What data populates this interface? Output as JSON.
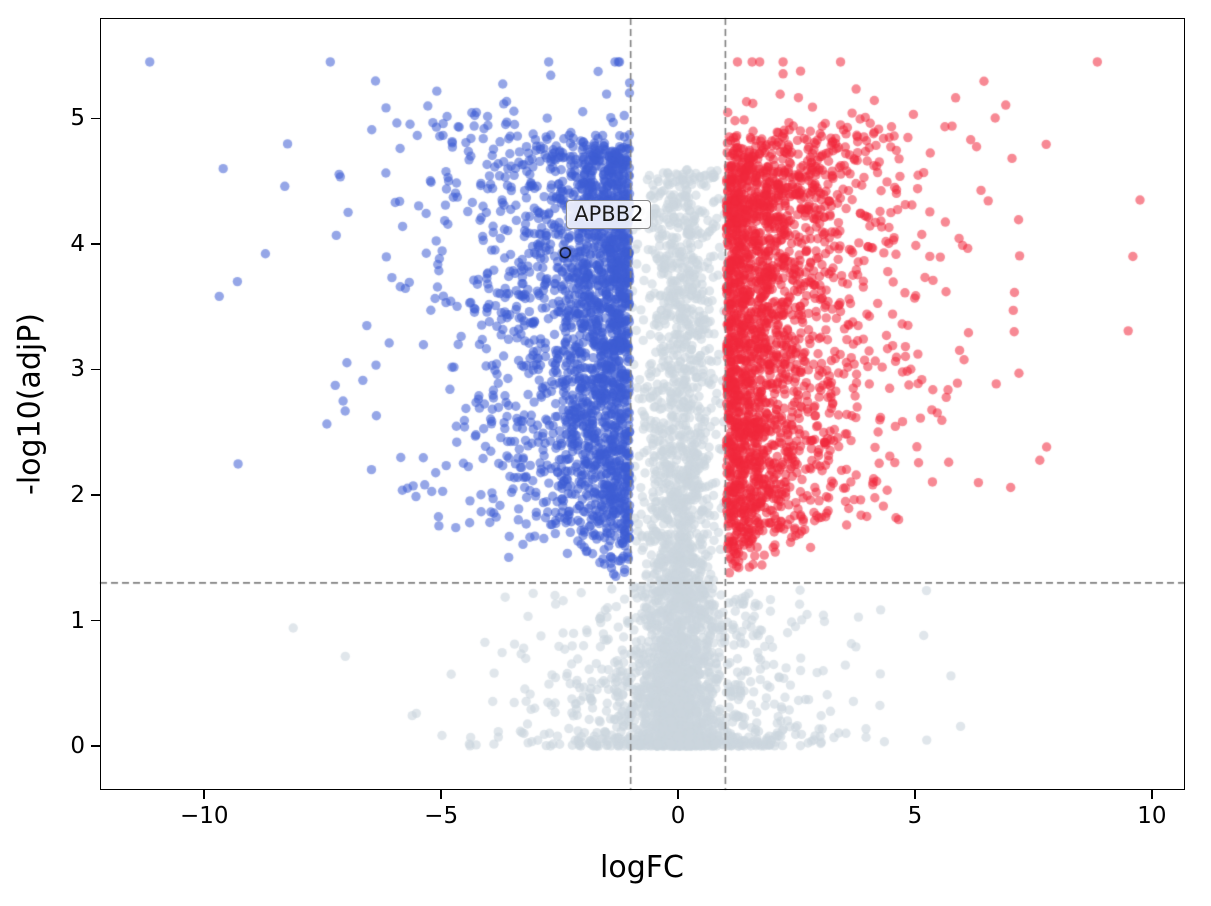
{
  "figure": {
    "background": "#ffffff"
  },
  "chart_data": {
    "type": "scatter",
    "subtype": "volcano-plot",
    "title": "",
    "xlabel": "logFC",
    "ylabel": "-log10(adjP)",
    "xlim": [
      -12.2,
      10.7
    ],
    "ylim": [
      -0.35,
      5.8
    ],
    "grid": false,
    "legend": "none",
    "xticks": {
      "values": [
        -10,
        -5,
        0,
        5,
        10
      ],
      "labels": [
        "−10",
        "−5",
        "0",
        "5",
        "10"
      ]
    },
    "yticks": {
      "values": [
        0,
        1,
        2,
        3,
        4,
        5
      ],
      "labels": [
        "0",
        "1",
        "2",
        "3",
        "4",
        "5"
      ]
    },
    "thresholds": {
      "logfc_low": -1,
      "logfc_high": 1,
      "pval_line": 1.3,
      "line_color": "#7f7f7f",
      "dash": [
        7,
        4
      ]
    },
    "marker": {
      "radius": 4.7
    },
    "seed": 42,
    "series": [
      {
        "name": "non-significant",
        "role": "ns",
        "color": "rgba(204,213,221,0.6)",
        "count": 3100,
        "sign": 0,
        "fc_scale": 0,
        "top_boost": 0
      },
      {
        "name": "down-regulated",
        "role": "down",
        "color": "rgba(62,92,211,0.55)",
        "count": 2300,
        "sign": -1,
        "fc_scale": 1.05,
        "top_boost": 0.008
      },
      {
        "name": "up-regulated",
        "role": "up",
        "color": "rgba(240,40,60,0.55)",
        "count": 2300,
        "sign": 1,
        "fc_scale": 1.05,
        "top_boost": 0.016
      }
    ],
    "outliers": [
      {
        "x": -11.15,
        "y": 5.45,
        "series": "down-regulated"
      },
      {
        "x": -9.6,
        "y": 4.6,
        "series": "down-regulated"
      },
      {
        "x": -9.3,
        "y": 3.7,
        "series": "down-regulated"
      },
      {
        "x": 9.75,
        "y": 4.35,
        "series": "up-regulated"
      },
      {
        "x": 9.6,
        "y": 3.9,
        "series": "up-regulated"
      },
      {
        "x": 8.85,
        "y": 5.45,
        "series": "up-regulated"
      }
    ],
    "annotations": [
      {
        "label": "APBB2",
        "x": -2.38,
        "y": 3.93,
        "marker": "open-circle"
      }
    ]
  }
}
